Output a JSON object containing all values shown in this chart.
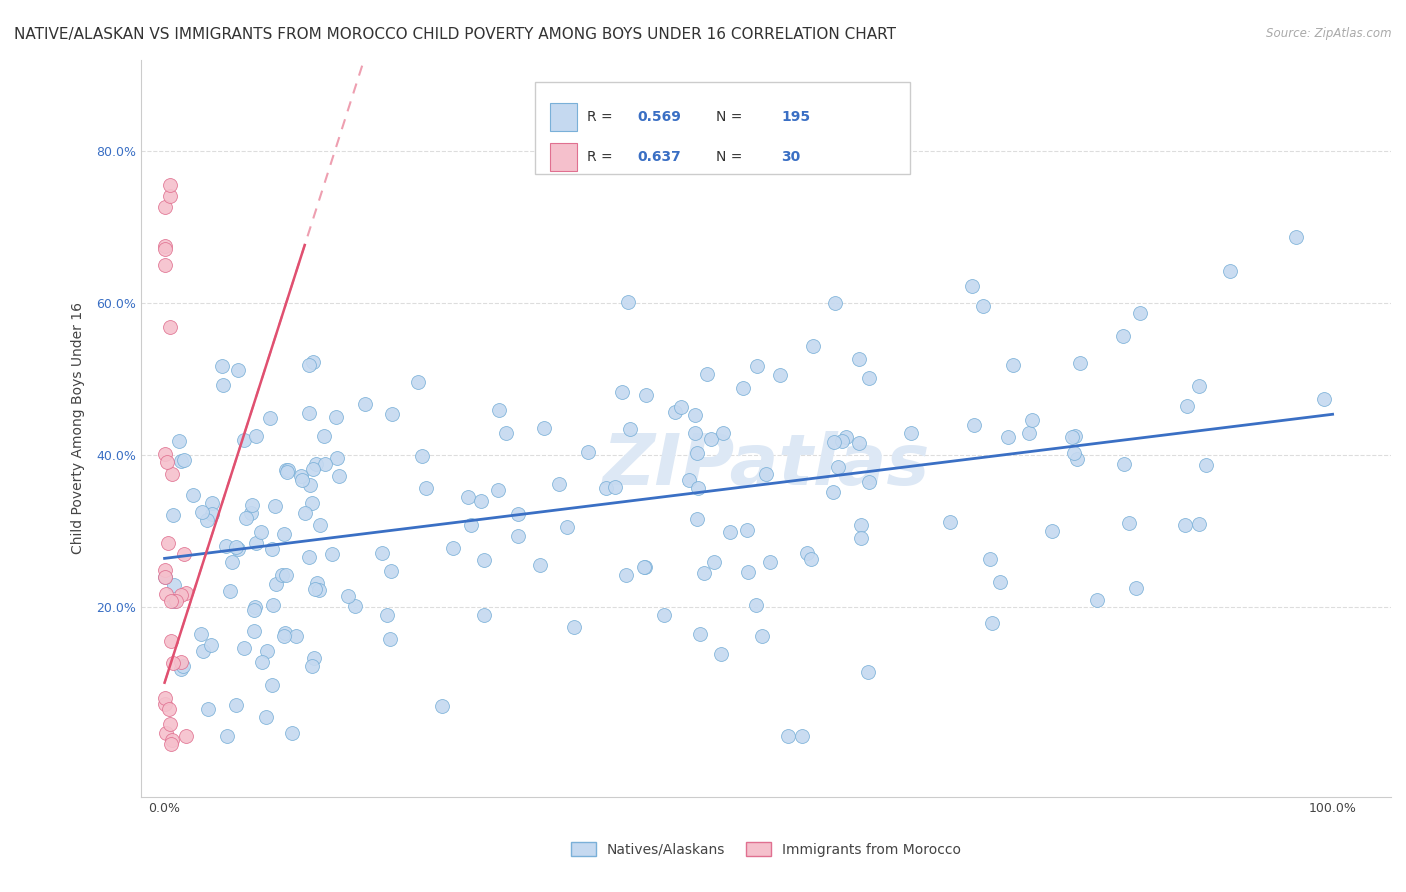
{
  "title": "NATIVE/ALASKAN VS IMMIGRANTS FROM MOROCCO CHILD POVERTY AMONG BOYS UNDER 16 CORRELATION CHART",
  "source": "Source: ZipAtlas.com",
  "ylabel": "Child Poverty Among Boys Under 16",
  "ytick_labels": [
    "20.0%",
    "40.0%",
    "60.0%",
    "80.0%"
  ],
  "ytick_values": [
    0.2,
    0.4,
    0.6,
    0.8
  ],
  "xtick_labels": [
    "0.0%",
    "100.0%"
  ],
  "xtick_values": [
    0.0,
    1.0
  ],
  "xlim": [
    -0.02,
    1.05
  ],
  "ylim": [
    -0.05,
    0.92
  ],
  "native_color": "#c5d9f0",
  "native_edge_color": "#7ab0d8",
  "morocco_color": "#f5c0cc",
  "morocco_edge_color": "#e07090",
  "trendline_native_color": "#3a6fc4",
  "trendline_morocco_color": "#e05070",
  "watermark_text": "ZIPatlas",
  "watermark_color": "#dde8f5",
  "watermark_fontsize": 52,
  "background_color": "#ffffff",
  "grid_color": "#dddddd",
  "legend_r_native": "0.569",
  "legend_n_native": "195",
  "legend_r_morocco": "0.637",
  "legend_n_morocco": "30",
  "title_fontsize": 11,
  "axis_label_fontsize": 10,
  "tick_fontsize": 9,
  "legend_fontsize": 11,
  "scatter_size": 100
}
